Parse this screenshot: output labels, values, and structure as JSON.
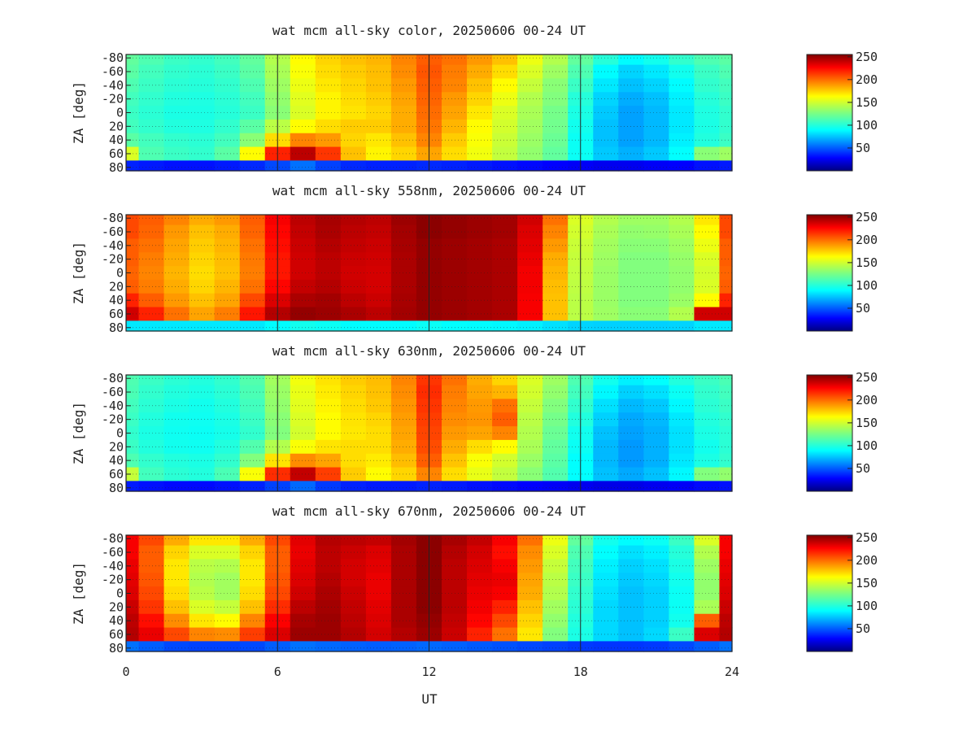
{
  "figure": {
    "xlabel": "UT",
    "x_ticks": [
      "0",
      "6",
      "12",
      "18",
      "24"
    ],
    "ylabel": "ZA [deg]",
    "y_ticks": [
      "-80",
      "-60",
      "-40",
      "-20",
      "0",
      "20",
      "40",
      "60",
      "80"
    ],
    "cbar_ticks": [
      "50",
      "100",
      "150",
      "200",
      "250"
    ]
  },
  "chart_data": [
    {
      "type": "heatmap",
      "title": "wat mcm all-sky color, 20250606 00-24 UT",
      "xlim": [
        0,
        24
      ],
      "ylim": [
        -85,
        85
      ],
      "zlim": [
        0,
        255
      ],
      "colormap": "jet",
      "grid": true,
      "x": [
        0,
        1,
        2,
        3,
        4,
        5,
        6,
        7,
        8,
        9,
        10,
        11,
        12,
        13,
        14,
        15,
        16,
        17,
        18,
        19,
        20,
        21,
        22,
        23,
        24
      ],
      "y": [
        -80,
        -60,
        -40,
        -20,
        0,
        20,
        40,
        60,
        80
      ],
      "z": [
        [
          120,
          115,
          110,
          108,
          112,
          120,
          140,
          160,
          170,
          175,
          178,
          190,
          200,
          195,
          185,
          175,
          155,
          140,
          120,
          105,
          95,
          100,
          108,
          115,
          118
        ],
        [
          118,
          112,
          108,
          106,
          110,
          118,
          138,
          158,
          168,
          172,
          176,
          188,
          202,
          192,
          180,
          168,
          150,
          135,
          115,
          95,
          85,
          90,
          100,
          110,
          115
        ],
        [
          115,
          110,
          106,
          105,
          108,
          115,
          135,
          155,
          165,
          170,
          175,
          185,
          200,
          190,
          175,
          160,
          145,
          130,
          110,
          90,
          80,
          85,
          95,
          108,
          112
        ],
        [
          112,
          108,
          104,
          103,
          106,
          112,
          132,
          152,
          162,
          168,
          172,
          182,
          198,
          185,
          170,
          155,
          140,
          128,
          105,
          85,
          75,
          80,
          92,
          105,
          110
        ],
        [
          110,
          106,
          102,
          102,
          105,
          110,
          130,
          150,
          162,
          166,
          170,
          180,
          196,
          182,
          165,
          150,
          138,
          125,
          102,
          82,
          72,
          78,
          90,
          103,
          108
        ],
        [
          112,
          108,
          104,
          103,
          108,
          118,
          142,
          160,
          168,
          172,
          172,
          180,
          194,
          178,
          160,
          148,
          136,
          124,
          100,
          80,
          72,
          78,
          90,
          102,
          108
        ],
        [
          118,
          112,
          108,
          106,
          112,
          130,
          168,
          190,
          185,
          170,
          165,
          175,
          190,
          172,
          158,
          146,
          134,
          122,
          98,
          80,
          72,
          78,
          92,
          104,
          110
        ],
        [
          150,
          115,
          110,
          108,
          118,
          160,
          215,
          240,
          210,
          175,
          162,
          170,
          182,
          168,
          156,
          144,
          132,
          120,
          98,
          82,
          76,
          82,
          96,
          130,
          135
        ],
        [
          40,
          38,
          36,
          36,
          38,
          42,
          50,
          60,
          48,
          42,
          40,
          40,
          42,
          40,
          38,
          36,
          34,
          32,
          30,
          28,
          28,
          30,
          32,
          36,
          38
        ]
      ]
    },
    {
      "type": "heatmap",
      "title": "wat mcm all-sky 558nm, 20250606 00-24 UT",
      "xlim": [
        0,
        24
      ],
      "ylim": [
        -85,
        85
      ],
      "zlim": [
        0,
        255
      ],
      "colormap": "jet",
      "grid": true,
      "x": [
        0,
        1,
        2,
        3,
        4,
        5,
        6,
        7,
        8,
        9,
        10,
        11,
        12,
        13,
        14,
        15,
        16,
        17,
        18,
        19,
        20,
        21,
        22,
        23,
        24
      ],
      "y": [
        -80,
        -60,
        -40,
        -20,
        0,
        20,
        40,
        60,
        80
      ],
      "z": [
        [
          205,
          200,
          190,
          180,
          185,
          200,
          225,
          240,
          245,
          242,
          240,
          248,
          252,
          250,
          248,
          246,
          235,
          195,
          150,
          140,
          135,
          135,
          140,
          165,
          205
        ],
        [
          205,
          198,
          185,
          175,
          180,
          198,
          222,
          238,
          244,
          240,
          238,
          246,
          252,
          250,
          248,
          246,
          232,
          190,
          148,
          138,
          132,
          133,
          138,
          160,
          205
        ],
        [
          200,
          195,
          182,
          172,
          178,
          195,
          220,
          236,
          242,
          238,
          236,
          245,
          250,
          248,
          246,
          244,
          230,
          185,
          146,
          136,
          130,
          130,
          135,
          155,
          200
        ],
        [
          200,
          192,
          180,
          170,
          176,
          193,
          218,
          235,
          240,
          236,
          235,
          244,
          250,
          248,
          246,
          244,
          228,
          180,
          145,
          135,
          128,
          128,
          133,
          150,
          200
        ],
        [
          198,
          190,
          178,
          168,
          175,
          192,
          218,
          235,
          240,
          235,
          234,
          244,
          250,
          248,
          246,
          244,
          226,
          178,
          144,
          134,
          128,
          128,
          132,
          148,
          198
        ],
        [
          200,
          192,
          180,
          170,
          178,
          195,
          222,
          238,
          242,
          236,
          234,
          244,
          250,
          248,
          246,
          244,
          226,
          176,
          143,
          134,
          128,
          128,
          132,
          150,
          200
        ],
        [
          215,
          200,
          185,
          175,
          182,
          205,
          232,
          244,
          246,
          240,
          236,
          245,
          250,
          248,
          246,
          244,
          225,
          175,
          142,
          134,
          128,
          128,
          134,
          160,
          215
        ],
        [
          235,
          215,
          195,
          182,
          192,
          218,
          242,
          250,
          248,
          244,
          240,
          246,
          250,
          248,
          246,
          244,
          225,
          175,
          142,
          135,
          130,
          130,
          140,
          235,
          235
        ],
        [
          90,
          90,
          90,
          90,
          90,
          90,
          95,
          100,
          98,
          95,
          95,
          95,
          98,
          96,
          95,
          94,
          92,
          88,
          85,
          84,
          84,
          84,
          85,
          90,
          90
        ]
      ]
    },
    {
      "type": "heatmap",
      "title": "wat mcm all-sky 630nm, 20250606 00-24 UT",
      "xlim": [
        0,
        24
      ],
      "ylim": [
        -85,
        85
      ],
      "zlim": [
        0,
        255
      ],
      "colormap": "jet",
      "grid": true,
      "x": [
        0,
        1,
        2,
        3,
        4,
        5,
        6,
        7,
        8,
        9,
        10,
        11,
        12,
        13,
        14,
        15,
        16,
        17,
        18,
        19,
        20,
        21,
        22,
        23,
        24
      ],
      "y": [
        -80,
        -60,
        -40,
        -20,
        0,
        20,
        40,
        60,
        80
      ],
      "z": [
        [
          115,
          110,
          106,
          104,
          108,
          116,
          136,
          156,
          166,
          172,
          176,
          190,
          210,
          195,
          180,
          170,
          150,
          135,
          115,
          100,
          92,
          96,
          104,
          110,
          114
        ],
        [
          114,
          108,
          104,
          102,
          106,
          114,
          134,
          154,
          164,
          170,
          175,
          188,
          212,
          192,
          182,
          178,
          148,
          132,
          112,
          94,
          84,
          88,
          98,
          108,
          112
        ],
        [
          112,
          106,
          102,
          100,
          104,
          112,
          132,
          152,
          162,
          168,
          173,
          186,
          210,
          190,
          185,
          195,
          145,
          128,
          108,
          88,
          78,
          82,
          94,
          106,
          110
        ],
        [
          110,
          104,
          100,
          99,
          102,
          110,
          130,
          150,
          160,
          166,
          170,
          184,
          208,
          188,
          186,
          200,
          142,
          125,
          104,
          84,
          74,
          78,
          90,
          104,
          108
        ],
        [
          108,
          102,
          99,
          98,
          101,
          108,
          128,
          148,
          160,
          165,
          168,
          182,
          206,
          185,
          182,
          190,
          140,
          122,
          100,
          80,
          72,
          76,
          88,
          102,
          106
        ],
        [
          110,
          104,
          100,
          99,
          104,
          116,
          140,
          158,
          166,
          168,
          168,
          180,
          204,
          180,
          168,
          160,
          138,
          120,
          98,
          78,
          70,
          76,
          88,
          100,
          106
        ],
        [
          115,
          108,
          104,
          102,
          108,
          128,
          166,
          188,
          182,
          168,
          164,
          176,
          200,
          174,
          158,
          148,
          134,
          118,
          96,
          78,
          70,
          76,
          90,
          102,
          108
        ],
        [
          145,
          112,
          106,
          104,
          114,
          158,
          212,
          238,
          208,
          172,
          160,
          170,
          190,
          168,
          154,
          144,
          130,
          116,
          96,
          80,
          74,
          80,
          94,
          128,
          132
        ],
        [
          38,
          36,
          34,
          34,
          36,
          40,
          48,
          58,
          46,
          40,
          38,
          38,
          40,
          38,
          36,
          34,
          32,
          30,
          28,
          26,
          26,
          28,
          30,
          34,
          36
        ]
      ]
    },
    {
      "type": "heatmap",
      "title": "wat mcm all-sky 670nm, 20250606 00-24 UT",
      "xlim": [
        0,
        24
      ],
      "ylim": [
        -85,
        85
      ],
      "zlim": [
        0,
        255
      ],
      "colormap": "jet",
      "grid": true,
      "x": [
        0,
        1,
        2,
        3,
        4,
        5,
        6,
        7,
        8,
        9,
        10,
        11,
        12,
        13,
        14,
        15,
        16,
        17,
        18,
        19,
        20,
        21,
        22,
        23,
        24
      ],
      "y": [
        -80,
        -60,
        -40,
        -20,
        0,
        20,
        40,
        60,
        80
      ],
      "z": [
        [
          225,
          205,
          180,
          165,
          165,
          180,
          205,
          230,
          242,
          240,
          238,
          246,
          252,
          245,
          238,
          225,
          195,
          155,
          120,
          100,
          95,
          98,
          110,
          150,
          225
        ],
        [
          225,
          200,
          170,
          150,
          150,
          170,
          200,
          228,
          240,
          236,
          232,
          244,
          252,
          242,
          234,
          220,
          188,
          150,
          115,
          96,
          88,
          92,
          105,
          140,
          225
        ],
        [
          228,
          200,
          165,
          142,
          140,
          165,
          200,
          230,
          240,
          234,
          230,
          244,
          252,
          240,
          232,
          225,
          185,
          145,
          112,
          92,
          84,
          88,
          102,
          135,
          228
        ],
        [
          230,
          202,
          165,
          140,
          136,
          165,
          202,
          232,
          242,
          234,
          228,
          244,
          252,
          240,
          230,
          228,
          182,
          142,
          110,
          90,
          82,
          86,
          100,
          132,
          230
        ],
        [
          232,
          205,
          168,
          142,
          136,
          168,
          205,
          235,
          244,
          236,
          228,
          244,
          252,
          240,
          228,
          225,
          180,
          140,
          108,
          88,
          80,
          84,
          98,
          132,
          232
        ],
        [
          236,
          210,
          175,
          150,
          145,
          175,
          212,
          240,
          246,
          238,
          230,
          244,
          252,
          240,
          226,
          215,
          175,
          136,
          106,
          86,
          80,
          84,
          98,
          138,
          236
        ],
        [
          240,
          220,
          188,
          165,
          160,
          190,
          224,
          245,
          248,
          240,
          232,
          244,
          250,
          238,
          222,
          205,
          170,
          132,
          104,
          86,
          80,
          84,
          100,
          200,
          240
        ],
        [
          242,
          228,
          205,
          190,
          188,
          208,
          232,
          248,
          248,
          242,
          234,
          242,
          248,
          236,
          215,
          195,
          165,
          128,
          102,
          86,
          80,
          86,
          110,
          232,
          242
        ],
        [
          60,
          55,
          50,
          48,
          48,
          50,
          55,
          60,
          58,
          56,
          55,
          56,
          58,
          56,
          54,
          52,
          50,
          48,
          46,
          45,
          45,
          46,
          50,
          55,
          60
        ]
      ]
    }
  ]
}
